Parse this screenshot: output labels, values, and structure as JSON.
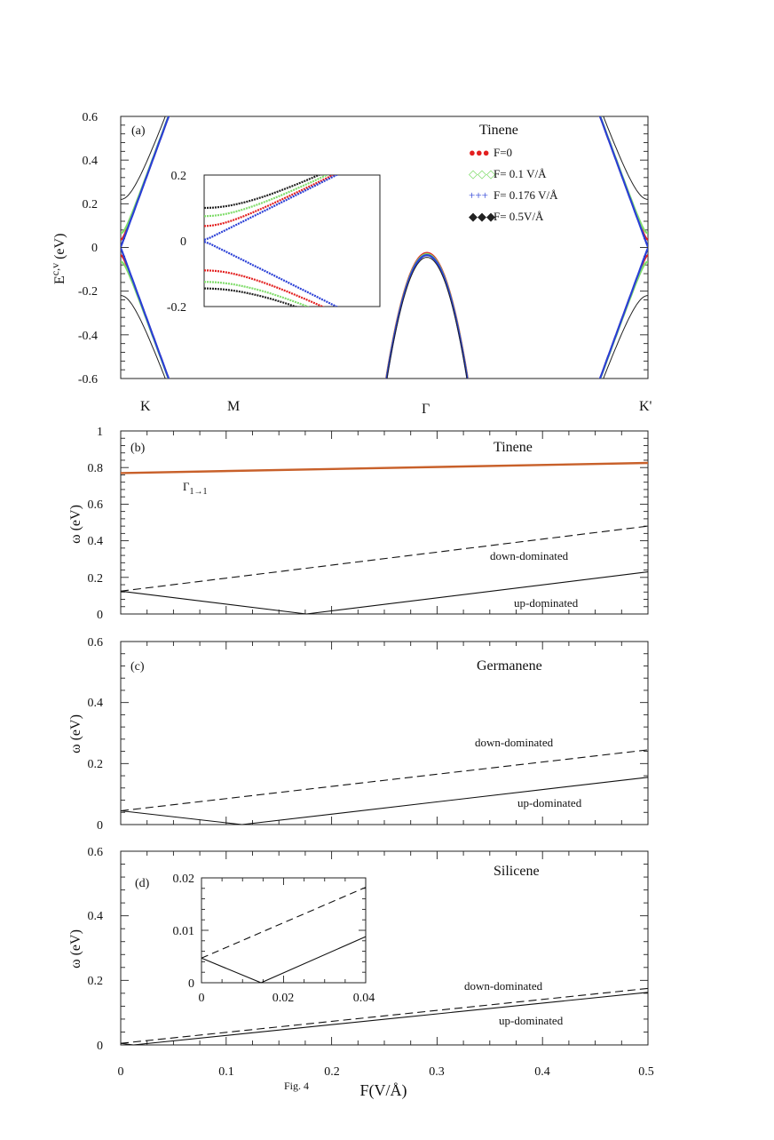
{
  "figure_caption": "Fig. 4",
  "chart_data": [
    {
      "panel": "(a)",
      "type": "line",
      "title": "Tinene",
      "ylabel_main": "E",
      "ylabel_sup": "c,v",
      "ylabel_unit": " (eV)",
      "ylim": [
        -0.6,
        0.6
      ],
      "yticks": [
        "0.6",
        "0.4",
        "0.2",
        "0",
        "-0.2",
        "-0.4",
        "-0.6"
      ],
      "xticks": [
        "K",
        "M",
        "Γ",
        "K'"
      ],
      "series": [
        {
          "name": "F=0",
          "color": "#e32020",
          "marker": "●●●",
          "gap": 0.035,
          "gamma_top": -0.025
        },
        {
          "name": "F= 0.1 V/Å",
          "color": "#7fdc6a",
          "marker": "◇◇◇",
          "gap": 0.065,
          "gamma_top": -0.03
        },
        {
          "name": "F= 0.176 V/Å",
          "color": "#2a3fd6",
          "marker": "+++",
          "gap": 0.003,
          "gamma_top": -0.035
        },
        {
          "name": "F= 0.5V/Å",
          "color": "#222222",
          "marker": "◆◆◆",
          "gap": 0.22,
          "gamma_top": -0.045
        }
      ],
      "inset": {
        "ylim": [
          -0.2,
          0.2
        ],
        "yticks": [
          "0.2",
          "0",
          "-0.2"
        ],
        "conduction_edges": [
          0.045,
          0.075,
          0.003,
          0.1
        ],
        "valence_edges": [
          -0.09,
          -0.125,
          -0.003,
          -0.145
        ]
      }
    },
    {
      "panel": "(b)",
      "type": "line",
      "title": "Tinene",
      "ylabel": "ω (eV)",
      "xlim": [
        0,
        0.5
      ],
      "ylim": [
        0,
        1
      ],
      "yticks": [
        "1",
        "0.8",
        "0.6",
        "0.4",
        "0.2",
        "0"
      ],
      "annotations": {
        "gamma": "Γ",
        "gamma_sub": "1→1",
        "down": "down-dominated",
        "up": "up-dominated"
      },
      "series": [
        {
          "name": "Γ1→1",
          "style": "solid",
          "color": "#c8602a",
          "x": [
            0,
            0.5
          ],
          "y": [
            0.77,
            0.825
          ]
        },
        {
          "name": "down-dominated",
          "style": "dashed",
          "color": "#111111",
          "x": [
            0,
            0.5
          ],
          "y": [
            0.125,
            0.48
          ]
        },
        {
          "name": "up-dominated",
          "style": "solid",
          "color": "#111111",
          "x": [
            0,
            0.176,
            0.5
          ],
          "y": [
            0.125,
            0.0,
            0.23
          ]
        }
      ]
    },
    {
      "panel": "(c)",
      "type": "line",
      "title": "Germanene",
      "ylabel": "ω (eV)",
      "xlim": [
        0,
        0.5
      ],
      "ylim": [
        0,
        0.6
      ],
      "yticks": [
        "0.6",
        "0.4",
        "0.2",
        "0"
      ],
      "annotations": {
        "down": "down-dominated",
        "up": "up-dominated"
      },
      "series": [
        {
          "name": "down-dominated",
          "style": "dashed",
          "color": "#111111",
          "x": [
            0,
            0.5
          ],
          "y": [
            0.045,
            0.245
          ]
        },
        {
          "name": "up-dominated",
          "style": "solid",
          "color": "#111111",
          "x": [
            0,
            0.115,
            0.5
          ],
          "y": [
            0.045,
            0.0,
            0.155
          ]
        }
      ]
    },
    {
      "panel": "(d)",
      "type": "line",
      "title": "Silicene",
      "ylabel": "ω (eV)",
      "xlabel": "F(V/Å)",
      "xlim": [
        0,
        0.5
      ],
      "ylim": [
        0,
        0.6
      ],
      "yticks": [
        "0.6",
        "0.4",
        "0.2",
        "0"
      ],
      "xticks": [
        "0",
        "0.1",
        "0.2",
        "0.3",
        "0.4",
        "0.5"
      ],
      "annotations": {
        "down": "down-dominated",
        "up": "up-dominated"
      },
      "series": [
        {
          "name": "down-dominated",
          "style": "dashed",
          "color": "#111111",
          "x": [
            0,
            0.5
          ],
          "y": [
            0.005,
            0.175
          ]
        },
        {
          "name": "up-dominated",
          "style": "solid",
          "color": "#111111",
          "x": [
            0,
            0.012,
            0.5
          ],
          "y": [
            0.005,
            0.0,
            0.163
          ]
        }
      ],
      "inset": {
        "xlim": [
          0,
          0.04
        ],
        "ylim": [
          0,
          0.02
        ],
        "xticks": [
          "0",
          "0.02",
          "0.04"
        ],
        "yticks": [
          "0.02",
          "0.01",
          "0"
        ],
        "series": [
          {
            "name": "down-dominated",
            "style": "dashed",
            "x": [
              0,
              0.04
            ],
            "y": [
              0.0047,
              0.0182
            ]
          },
          {
            "name": "up-dominated",
            "style": "solid",
            "x": [
              0,
              0.0145,
              0.04
            ],
            "y": [
              0.0047,
              0.0,
              0.0088
            ]
          }
        ]
      }
    }
  ]
}
